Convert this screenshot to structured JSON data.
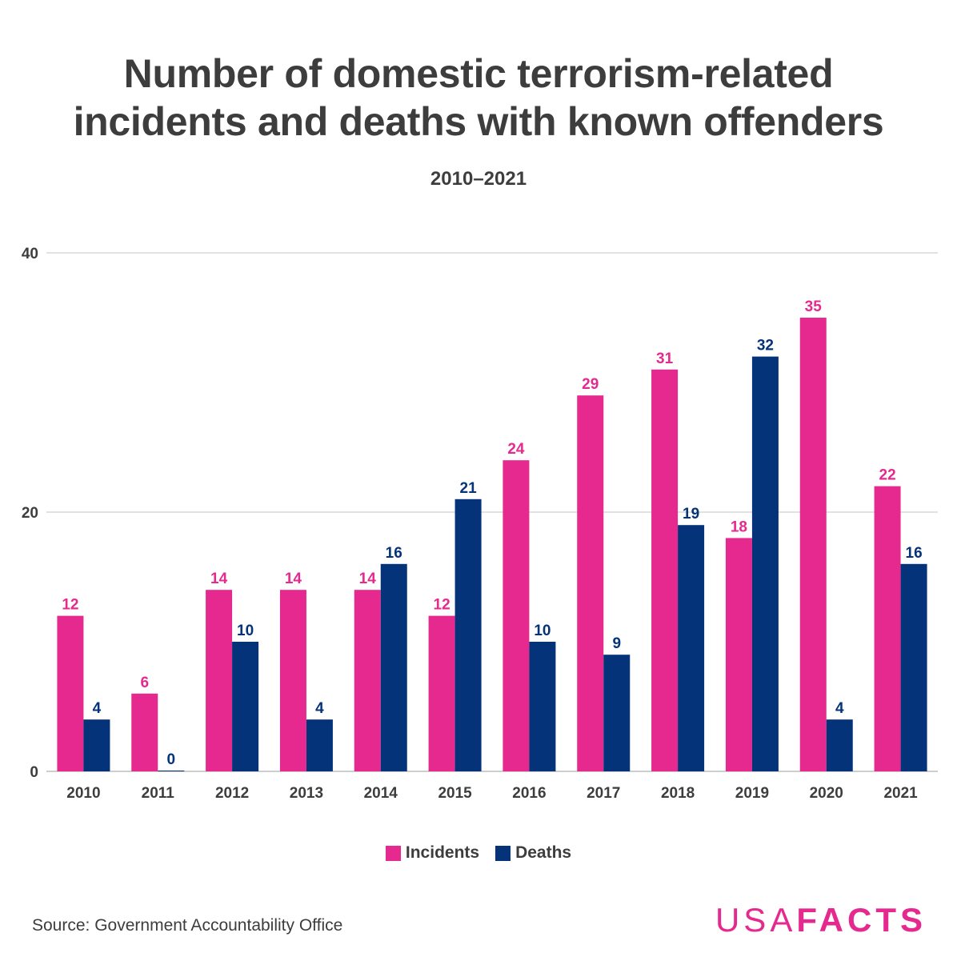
{
  "header": {
    "title_line1": "Number of domestic terrorism-related",
    "title_line2": "incidents and deaths with known offenders",
    "subtitle": "2010–2021"
  },
  "footer": {
    "source": "Source: Government Accountability Office",
    "logo_light": "USA",
    "logo_bold": "FACTS"
  },
  "colors": {
    "incidents": "#e5298e",
    "deaths": "#04337a",
    "gridline": "#d9d9d9",
    "text": "#3d3d3d"
  },
  "chart_data": {
    "type": "bar",
    "categories": [
      "2010",
      "2011",
      "2012",
      "2013",
      "2014",
      "2015",
      "2016",
      "2017",
      "2018",
      "2019",
      "2020",
      "2021"
    ],
    "series": [
      {
        "name": "Incidents",
        "values": [
          12,
          6,
          14,
          14,
          14,
          12,
          24,
          29,
          31,
          18,
          35,
          22
        ]
      },
      {
        "name": "Deaths",
        "values": [
          4,
          0,
          10,
          4,
          16,
          21,
          10,
          9,
          19,
          32,
          4,
          16
        ]
      }
    ],
    "title": "Number of domestic terrorism-related incidents and deaths with known offenders",
    "subtitle": "2010–2021",
    "xlabel": "",
    "ylabel": "",
    "ylim": [
      0,
      40
    ],
    "yticks": [
      0,
      20,
      40
    ],
    "grid": true,
    "legend": "bottom-center"
  }
}
